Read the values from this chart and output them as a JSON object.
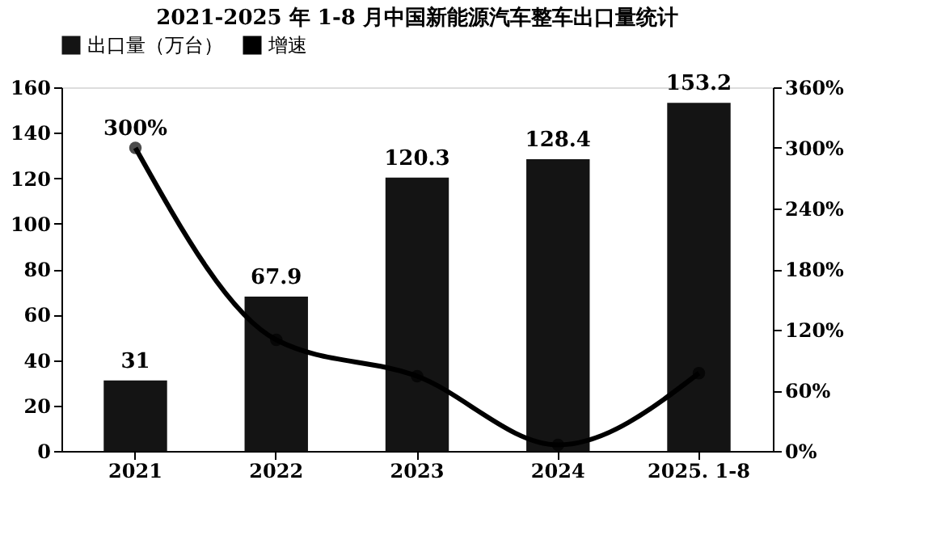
{
  "chart_data": {
    "type": "bar",
    "title": "2021-2025 年 1-8 月中国新能源汽车整车出口量统计",
    "categories": [
      "2021",
      "2022",
      "2023",
      "2024",
      "2025. 1-8"
    ],
    "series": [
      {
        "name": "出口量（万台）",
        "color": "#141414",
        "values": [
          31,
          67.9,
          120.3,
          128.4,
          153.2
        ],
        "data_labels": true
      },
      {
        "name": "增速",
        "type": "line",
        "axis": "y2",
        "color": "#000000",
        "values": [
          300,
          110,
          74,
          6,
          77
        ],
        "value_labels": [
          "300%",
          null,
          null,
          null,
          null
        ],
        "marker": "circle"
      }
    ],
    "ylim": [
      0,
      160
    ],
    "yticks": [
      0,
      20,
      40,
      60,
      80,
      100,
      120,
      140,
      160
    ],
    "y2lim": [
      0,
      360
    ],
    "y2ticks": [
      {
        "value": 0,
        "label": "0%"
      },
      {
        "value": 60,
        "label": "60%"
      },
      {
        "value": 120,
        "label": "120%"
      },
      {
        "value": 180,
        "label": "180%"
      },
      {
        "value": 240,
        "label": "240%"
      },
      {
        "value": 300,
        "label": "300%"
      },
      {
        "value": 360,
        "label": "360%"
      }
    ],
    "legend": "top",
    "grid": false
  }
}
